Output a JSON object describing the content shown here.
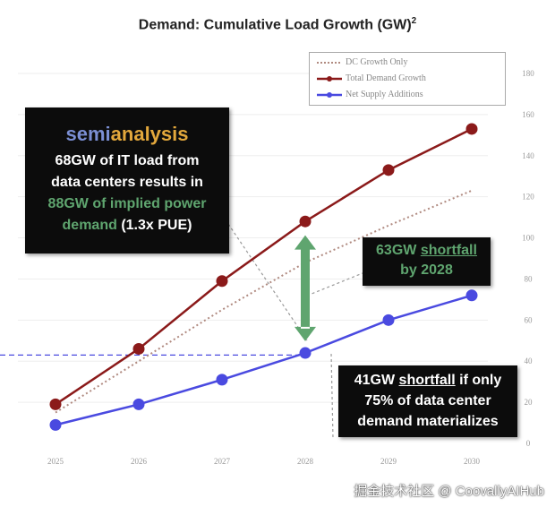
{
  "chart_data": {
    "type": "line",
    "title": "Demand: Cumulative Load Growth (GW)",
    "title_superscript": "2",
    "categories": [
      "2025",
      "2026",
      "2027",
      "2028",
      "2029",
      "2030"
    ],
    "series": [
      {
        "name": "DC Growth Only",
        "style": "dotted",
        "color": "#b08a80",
        "values": [
          15,
          40,
          65,
          88,
          106,
          123
        ]
      },
      {
        "name": "Total Demand Growth",
        "style": "solid-markers",
        "color": "#8b1a1a",
        "values": [
          19,
          46,
          79,
          108,
          133,
          153
        ]
      },
      {
        "name": "Net Supply Additions",
        "style": "solid-markers",
        "color": "#4a4ae0",
        "values": [
          9,
          19,
          31,
          44,
          60,
          72
        ]
      }
    ],
    "y_ticks": [
      "0",
      "20",
      "40",
      "60",
      "80",
      "100",
      "120",
      "140",
      "160",
      "180"
    ],
    "ylim": [
      0,
      180
    ],
    "y_axis_side": "right",
    "legend_placement": "top-right",
    "grid": true,
    "reference_line": {
      "value": 43,
      "color": "#4a4ae0",
      "style": "dashed"
    },
    "gap_arrow": {
      "year": "2028",
      "from": 48,
      "to": 103,
      "color": "#5fa56f"
    },
    "annotations": {
      "logo": {
        "part1": "semi",
        "part2": "analysis"
      },
      "box1": {
        "line1": "68GW of IT load from",
        "line2": "data centers results in",
        "line3_green": "88GW of implied power",
        "line4_green": "demand",
        "line4_white": " (1.3x PUE)"
      },
      "box2": {
        "line1_pre": "63GW ",
        "line1_u": "shortfall",
        "line2": "by 2028"
      },
      "box3": {
        "line1_pre": "41GW ",
        "line1_u": "shortfall",
        "line1_post": " if only",
        "line2": "75% of data center",
        "line3": "demand materializes"
      }
    }
  },
  "watermark": "掘金技术社区 @ CoovallyAIHub"
}
